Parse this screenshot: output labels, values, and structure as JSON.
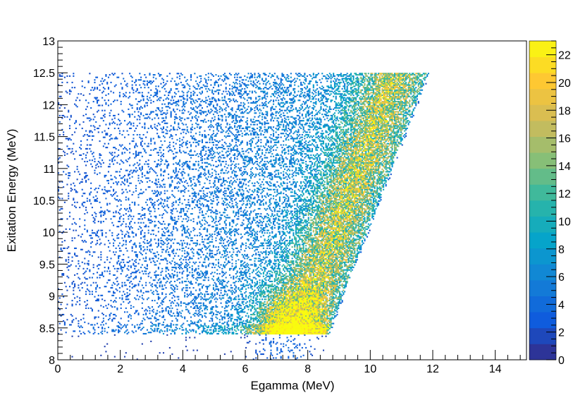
{
  "chart_data": {
    "type": "heatmap",
    "title": "",
    "xlabel": "Egamma (MeV)",
    "ylabel": "Exitation Energy (MeV)",
    "xlim": [
      0,
      15
    ],
    "ylim": [
      8,
      13
    ],
    "x_ticks": [
      "0",
      "2",
      "4",
      "6",
      "8",
      "10",
      "12",
      "14"
    ],
    "y_ticks": [
      "8",
      "8.5",
      "9",
      "9.5",
      "10",
      "10.5",
      "11",
      "11.5",
      "12",
      "12.5",
      "13"
    ],
    "z_range": [
      0,
      23
    ],
    "z_ticks": [
      "0",
      "2",
      "4",
      "6",
      "8",
      "10",
      "12",
      "14",
      "16",
      "18",
      "20",
      "22"
    ],
    "colormap": [
      "#352a87",
      "#0f5cdd",
      "#1481d6",
      "#06a4ca",
      "#2eb7a4",
      "#87bf77",
      "#d1bb59",
      "#fec832",
      "#f9fb0e"
    ],
    "grid": false,
    "region": {
      "ex_min": 8.4,
      "ex_max": 12.5,
      "egamma_edge_at_ex_min": 8.6,
      "egamma_edge_at_ex_max": 11.8,
      "ridge_offset_from_edge": 1.0,
      "peak_egamma": 7.4,
      "peak_ex": 8.55,
      "peak_counts": 22
    }
  }
}
